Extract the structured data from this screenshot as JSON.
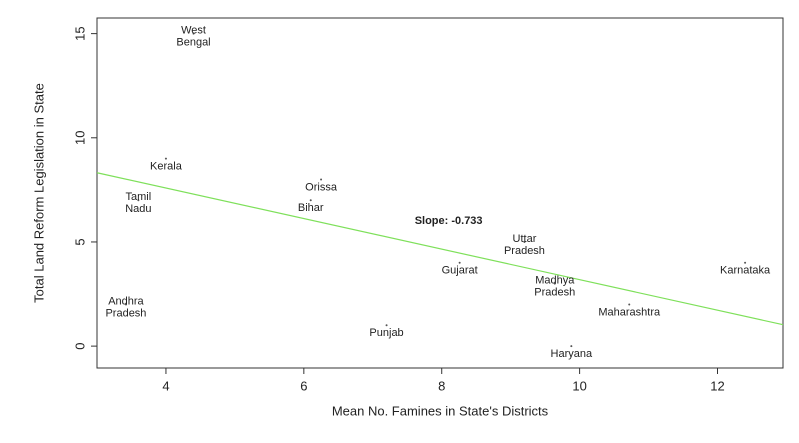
{
  "chart_data": {
    "type": "scatter",
    "x_label": "Mean No. Famines in State's Districts",
    "y_label": "Total Land Reform Legislation in State",
    "labels": [
      [
        "West",
        "Bengal"
      ],
      [
        "Kerala"
      ],
      [
        "Tamil",
        "Nadu"
      ],
      [
        "Orissa"
      ],
      [
        "Bihar"
      ],
      [
        "Uttar",
        "Pradesh"
      ],
      [
        "Gujarat"
      ],
      [
        "Karnataka"
      ],
      [
        "Madhya",
        "Pradesh"
      ],
      [
        "Maharashtra"
      ],
      [
        "Andhra",
        "Pradesh"
      ],
      [
        "Punjab"
      ],
      [
        "Haryana"
      ]
    ],
    "x": [
      4.4,
      4.0,
      3.6,
      6.25,
      6.1,
      9.2,
      8.26,
      12.4,
      9.64,
      10.72,
      3.42,
      7.2,
      9.88
    ],
    "y": [
      15,
      9,
      7,
      8,
      7,
      5,
      4,
      4,
      3,
      2,
      2,
      1,
      0
    ],
    "color": "#555555",
    "fit": {
      "intercept": 10.52,
      "slope": -0.733,
      "color": "#7ee05a"
    },
    "annotation": "Slope:  -0.733",
    "xlim": [
      3.0,
      12.95
    ],
    "ylim": [
      -1.05,
      15.75
    ],
    "xticks": [
      4,
      6,
      8,
      10,
      12
    ],
    "yticks": [
      0,
      5,
      10,
      15
    ]
  }
}
